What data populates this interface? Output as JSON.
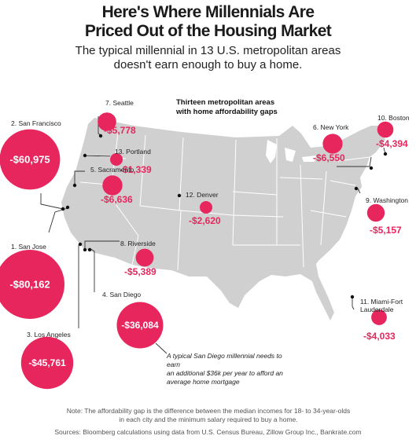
{
  "title_lines": [
    "Here's Where Millennials Are",
    "Priced Out of the Housing Market"
  ],
  "subtitle_lines": [
    "The typical millennial in 13 U.S. metropolitan areas",
    "doesn't earn enough to buy a home."
  ],
  "map_heading_lines": [
    "Thirteen metropolitan areas",
    "with home affordability gaps"
  ],
  "colors": {
    "bubble": "#e8265e",
    "land": "#d0d0d0",
    "border": "#ffffff",
    "leader": "#333333",
    "text": "#1a1a1a"
  },
  "cities": [
    {
      "id": "seattle",
      "label": "7. Seattle",
      "gap": "-$5,778",
      "gap_value": -5778
    },
    {
      "id": "portland",
      "label": "13. Portland",
      "gap": "-$1,339",
      "gap_value": -1339
    },
    {
      "id": "san-francisco",
      "label": "2. San Francisco",
      "gap": "-$60,975",
      "gap_value": -60975
    },
    {
      "id": "sacramento",
      "label": "5. Sacramento",
      "gap": "-$6,636",
      "gap_value": -6636
    },
    {
      "id": "san-jose",
      "label": "1. San Jose",
      "gap": "-$80,162",
      "gap_value": -80162
    },
    {
      "id": "riverside",
      "label": "8. Riverside",
      "gap": "-$5,389",
      "gap_value": -5389
    },
    {
      "id": "los-angeles",
      "label": "3. Los Angeles",
      "gap": "-$45,761",
      "gap_value": -45761
    },
    {
      "id": "san-diego",
      "label": "4. San Diego",
      "gap": "-$36,084",
      "gap_value": -36084
    },
    {
      "id": "denver",
      "label": "12. Denver",
      "gap": "-$2,620",
      "gap_value": -2620
    },
    {
      "id": "new-york",
      "label": "6. New York",
      "gap": "-$6,550",
      "gap_value": -6550
    },
    {
      "id": "boston",
      "label": "10. Boston",
      "gap": "-$4,394",
      "gap_value": -4394
    },
    {
      "id": "washington",
      "label": "9. Washington",
      "gap": "-$5,157",
      "gap_value": -5157
    },
    {
      "id": "miami",
      "label": "11. Miami-Fort Lauderdale",
      "label_lines": [
        "11. Miami-Fort",
        "Lauderdale"
      ],
      "gap": "-$4,033",
      "gap_value": -4033
    }
  ],
  "callout_lines": [
    "A typical San Diego millennial needs to earn",
    "an additional $36k per year to afford an",
    "average home mortgage"
  ],
  "note_lines": [
    "Note: The affordability gap is the difference between the median incomes for 18- to 34-year-olds",
    "in each city and the minimum salary required to buy a home."
  ],
  "sources": "Sources: Bloomberg calculations using data from U.S. Census Bureau, Zillow Group Inc., Bankrate.com"
}
